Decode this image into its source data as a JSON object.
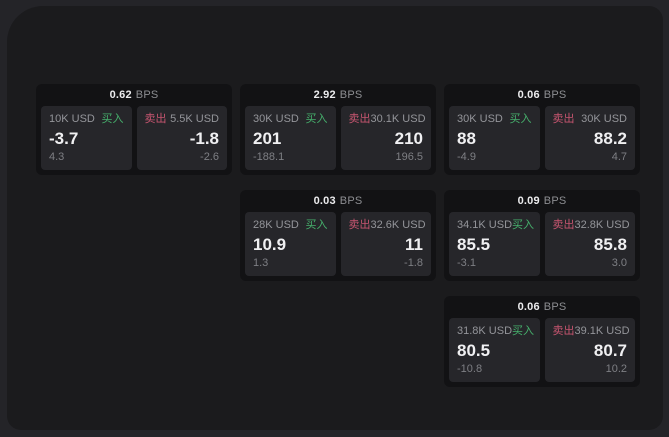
{
  "labels": {
    "buy": "买入",
    "sell": "卖出",
    "bps_unit": "BPS"
  },
  "colors": {
    "backdrop": "#242428",
    "panel": "#1b1b1d",
    "card": "#121214",
    "tile": "#26262a",
    "buy_green": "#46b06c",
    "sell_red": "#c75570"
  },
  "cards": [
    {
      "col": 0,
      "row": 0,
      "bps": "0.62",
      "buy": {
        "amount": "10K USD",
        "price": "-3.7",
        "change": "4.3"
      },
      "sell": {
        "amount": "5.5K USD",
        "price": "-1.8",
        "change": "-2.6"
      }
    },
    {
      "col": 1,
      "row": 0,
      "bps": "2.92",
      "buy": {
        "amount": "30K USD",
        "price": "201",
        "change": "-188.1"
      },
      "sell": {
        "amount": "30.1K USD",
        "price": "210",
        "change": "196.5"
      }
    },
    {
      "col": 2,
      "row": 0,
      "bps": "0.06",
      "buy": {
        "amount": "30K USD",
        "price": "88",
        "change": "-4.9"
      },
      "sell": {
        "amount": "30K USD",
        "price": "88.2",
        "change": "4.7"
      }
    },
    {
      "col": 1,
      "row": 1,
      "bps": "0.03",
      "buy": {
        "amount": "28K USD",
        "price": "10.9",
        "change": "1.3"
      },
      "sell": {
        "amount": "32.6K USD",
        "price": "11",
        "change": "-1.8"
      }
    },
    {
      "col": 2,
      "row": 1,
      "bps": "0.09",
      "buy": {
        "amount": "34.1K USD",
        "price": "85.5",
        "change": "-3.1"
      },
      "sell": {
        "amount": "32.8K USD",
        "price": "85.8",
        "change": "3.0"
      }
    },
    {
      "col": 2,
      "row": 2,
      "bps": "0.06",
      "buy": {
        "amount": "31.8K USD",
        "price": "80.5",
        "change": "-10.8"
      },
      "sell": {
        "amount": "39.1K USD",
        "price": "80.7",
        "change": "10.2"
      }
    }
  ]
}
